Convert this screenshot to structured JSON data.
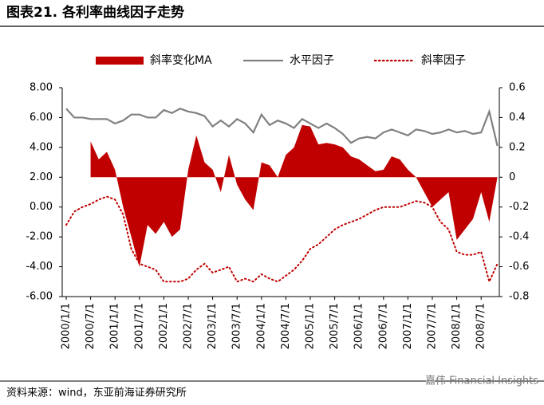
{
  "chart_data": {
    "type": "dual-axis-line-area",
    "title": "图表21. 各利率曲线因子走势",
    "source": "资料来源：wind，东亚前海证券研究所",
    "watermark": "嘉伟 Financial Insights",
    "x": [
      "2000/1/1",
      "2000/3/1",
      "2000/5/1",
      "2000/7/1",
      "2000/9/1",
      "2000/11/1",
      "2001/1/1",
      "2001/3/1",
      "2001/5/1",
      "2001/7/1",
      "2001/9/1",
      "2001/11/1",
      "2002/1/1",
      "2002/3/1",
      "2002/5/1",
      "2002/7/1",
      "2002/9/1",
      "2002/11/1",
      "2003/1/1",
      "2003/3/1",
      "2003/5/1",
      "2003/7/1",
      "2003/9/1",
      "2003/11/1",
      "2004/1/1",
      "2004/3/1",
      "2004/5/1",
      "2004/7/1",
      "2004/9/1",
      "2004/11/1",
      "2005/1/1",
      "2005/3/1",
      "2005/5/1",
      "2005/7/1",
      "2005/9/1",
      "2005/11/1",
      "2006/1/1",
      "2006/3/1",
      "2006/5/1",
      "2006/7/1",
      "2006/9/1",
      "2006/11/1",
      "2007/1/1",
      "2007/3/1",
      "2007/5/1",
      "2007/7/1",
      "2007/9/1",
      "2007/11/1",
      "2008/1/1",
      "2008/3/1",
      "2008/5/1",
      "2008/7/1",
      "2008/9/1",
      "2008/11/1"
    ],
    "xticks": [
      "2000/1/1",
      "2000/7/1",
      "2001/1/1",
      "2001/7/1",
      "2002/1/1",
      "2002/7/1",
      "2003/1/1",
      "2003/7/1",
      "2004/1/1",
      "2004/7/1",
      "2005/1/1",
      "2005/7/1",
      "2006/1/1",
      "2006/7/1",
      "2007/1/1",
      "2007/7/1",
      "2008/1/1",
      "2008/7/1"
    ],
    "series": [
      {
        "name": "斜率变化MA",
        "kind": "area",
        "color": "#c00000",
        "axis": "y2",
        "values": [
          null,
          null,
          null,
          0.24,
          0.12,
          0.17,
          0.05,
          -0.2,
          -0.4,
          -0.6,
          -0.32,
          -0.38,
          -0.3,
          -0.4,
          -0.35,
          0.05,
          0.28,
          0.1,
          0.05,
          -0.1,
          0.15,
          -0.05,
          -0.15,
          -0.22,
          0.1,
          0.08,
          0,
          0.15,
          0.2,
          0.35,
          0.34,
          0.22,
          0.23,
          0.22,
          0.2,
          0.14,
          0.12,
          0.08,
          0.04,
          0.05,
          0.14,
          0.12,
          0.05,
          0,
          -0.1,
          -0.2,
          -0.15,
          -0.1,
          -0.42,
          -0.35,
          -0.28,
          -0.1,
          -0.3,
          0
        ]
      },
      {
        "name": "水平因子",
        "kind": "line",
        "color": "#808080",
        "axis": "y",
        "values": [
          6.6,
          6.0,
          6.0,
          5.9,
          5.9,
          5.9,
          5.6,
          5.8,
          6.2,
          6.2,
          6.0,
          6.0,
          6.5,
          6.3,
          6.6,
          6.4,
          6.3,
          6.1,
          5.4,
          5.8,
          5.4,
          5.9,
          5.6,
          5.0,
          6.2,
          5.5,
          5.8,
          5.6,
          5.3,
          5.9,
          5.6,
          5.3,
          5.6,
          5.3,
          4.9,
          4.3,
          4.6,
          4.7,
          4.6,
          5.0,
          5.2,
          5.0,
          4.8,
          5.2,
          5.1,
          4.9,
          5.0,
          5.2,
          5.0,
          5.1,
          4.9,
          5.0,
          6.4,
          4.1
        ]
      },
      {
        "name": "斜率因子",
        "kind": "dotted",
        "color": "#c00000",
        "axis": "y2",
        "values": [
          -0.32,
          -0.23,
          -0.2,
          -0.18,
          -0.15,
          -0.13,
          -0.15,
          -0.25,
          -0.48,
          -0.58,
          -0.6,
          -0.62,
          -0.7,
          -0.7,
          -0.7,
          -0.68,
          -0.62,
          -0.58,
          -0.64,
          -0.62,
          -0.6,
          -0.7,
          -0.68,
          -0.7,
          -0.65,
          -0.68,
          -0.7,
          -0.66,
          -0.62,
          -0.56,
          -0.48,
          -0.45,
          -0.4,
          -0.35,
          -0.32,
          -0.3,
          -0.28,
          -0.25,
          -0.22,
          -0.2,
          -0.2,
          -0.2,
          -0.18,
          -0.16,
          -0.17,
          -0.2,
          -0.3,
          -0.35,
          -0.5,
          -0.52,
          -0.52,
          -0.5,
          -0.7,
          -0.58
        ]
      }
    ],
    "ylim": [
      -6,
      8
    ],
    "yticks": [
      {
        "value": -6,
        "label": "-6.00"
      },
      {
        "value": -4,
        "label": "-4.00"
      },
      {
        "value": -2,
        "label": "-2.00"
      },
      {
        "value": 0,
        "label": "0.00"
      },
      {
        "value": 2,
        "label": "2.00"
      },
      {
        "value": 4,
        "label": "4.00"
      },
      {
        "value": 6,
        "label": "6.00"
      },
      {
        "value": 8,
        "label": "8.00"
      }
    ],
    "y2lim": [
      -0.8,
      0.6
    ],
    "y2ticks": [
      -0.8,
      -0.6,
      -0.4,
      -0.2,
      0,
      0.2,
      0.4,
      0.6
    ],
    "legend": "top"
  }
}
